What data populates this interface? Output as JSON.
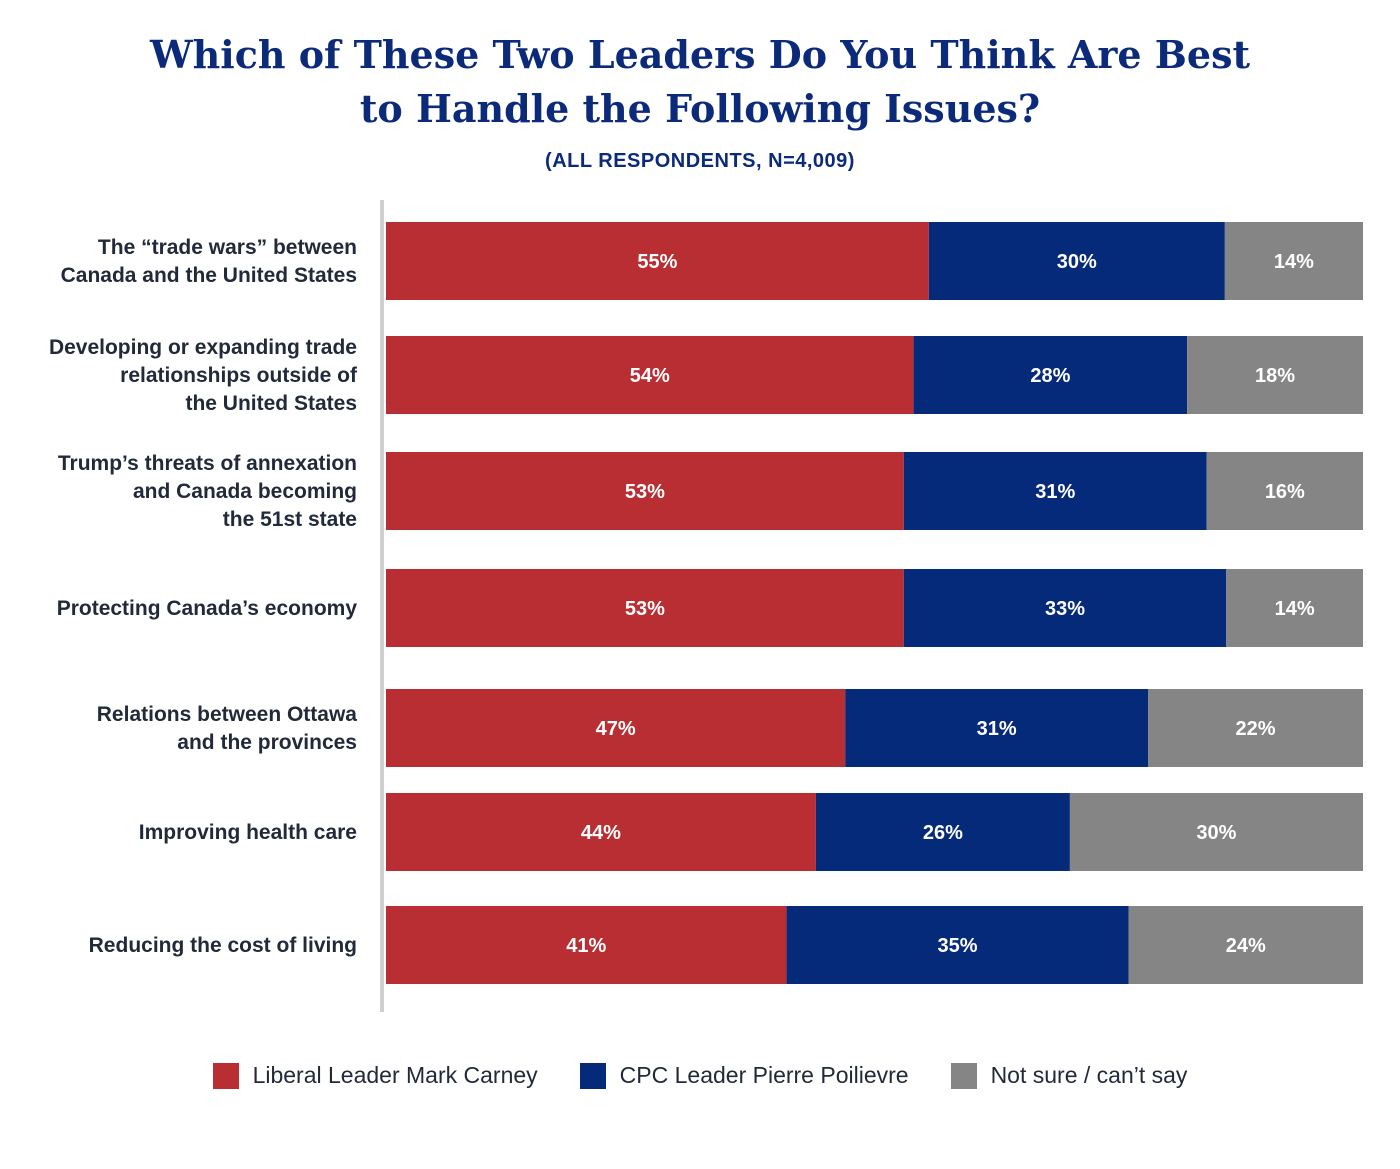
{
  "header": {
    "title_line1": "Which of These Two Leaders Do You Think Are Best",
    "title_line2": "to Handle the Following Issues?",
    "subtitle": "(ALL RESPONDENTS, N=4,009)"
  },
  "colors": {
    "carney": "#b82e33",
    "poilievre": "#062a7a",
    "not_sure": "#858585",
    "axis": "#cfcfcf"
  },
  "chart_data": {
    "type": "bar",
    "orientation": "horizontal",
    "stacked": true,
    "normalized": true,
    "title": "Which of These Two Leaders Do You Think Are Best to Handle the Following Issues?",
    "subtitle": "(ALL RESPONDENTS, N=4,009)",
    "unit": "%",
    "legend_position": "bottom",
    "grid": false,
    "categories": [
      [
        "The “trade wars” between",
        "Canada and the United States"
      ],
      [
        "Developing or expanding trade",
        "relationships outside of",
        "the United States"
      ],
      [
        "Trump’s threats of annexation",
        "and Canada becoming",
        "the 51st state"
      ],
      [
        "Protecting Canada’s economy"
      ],
      [
        "Relations between Ottawa",
        "and the provinces"
      ],
      [
        "Improving health care"
      ],
      [
        "Reducing the cost of living"
      ]
    ],
    "series": [
      {
        "name": "Liberal Leader Mark Carney",
        "values": [
          55,
          54,
          53,
          53,
          47,
          44,
          41
        ]
      },
      {
        "name": "CPC Leader Pierre Poilievre",
        "values": [
          30,
          28,
          31,
          33,
          31,
          26,
          35
        ]
      },
      {
        "name": "Not sure / can’t say",
        "values": [
          14,
          18,
          16,
          14,
          22,
          30,
          24
        ]
      }
    ]
  }
}
